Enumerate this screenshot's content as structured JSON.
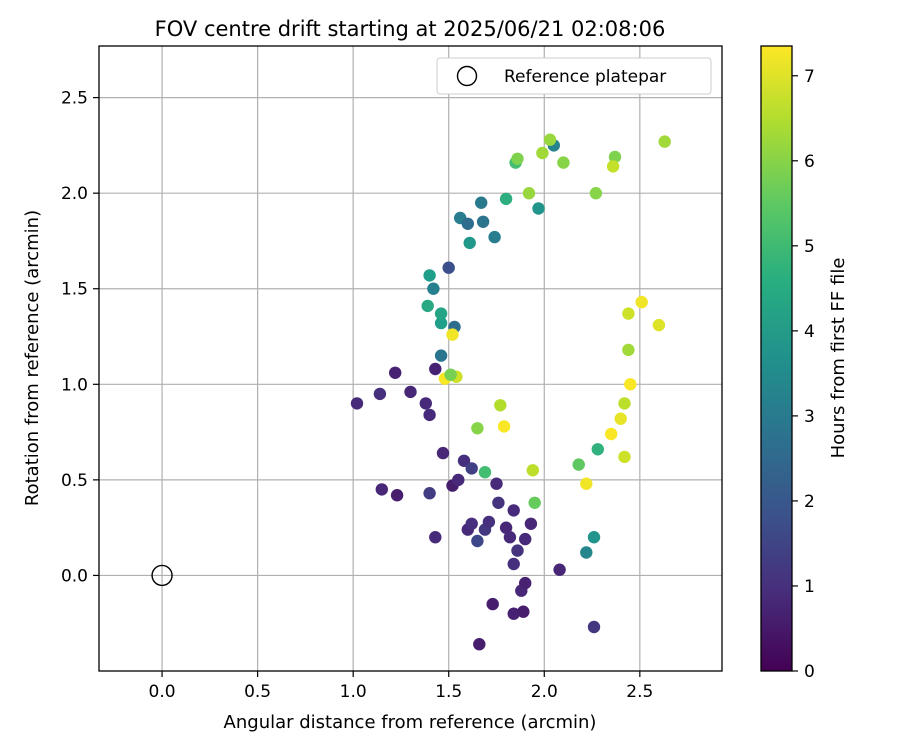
{
  "chart_data": {
    "type": "scatter",
    "title": "FOV centre drift starting at 2025/06/21 02:08:06",
    "xlabel": "Angular distance from reference (arcmin)",
    "ylabel": "Rotation from reference (arcmin)",
    "xlim": [
      -0.33,
      2.93
    ],
    "ylim": [
      -0.5,
      2.77
    ],
    "xticks": [
      "0.0",
      "0.5",
      "1.0",
      "1.5",
      "2.0",
      "2.5"
    ],
    "yticks": [
      "0.0",
      "0.5",
      "1.0",
      "1.5",
      "2.0",
      "2.5"
    ],
    "grid": true,
    "legend": {
      "placement": "top-right",
      "entries": [
        "Reference platepar"
      ]
    },
    "reference_point": {
      "label": "Reference platepar",
      "x": 0.0,
      "y": 0.0
    },
    "colorbar": {
      "label": "Hours from first FF file",
      "range": [
        0,
        7.35
      ],
      "ticks": [
        "0",
        "1",
        "2",
        "3",
        "4",
        "5",
        "6",
        "7"
      ],
      "colormap": "viridis"
    },
    "series": [
      {
        "point_format": [
          "x_arcmin",
          "y_arcmin",
          "hours"
        ],
        "points": [
          [
            1.02,
            0.9,
            0.9
          ],
          [
            1.14,
            0.95,
            1.0
          ],
          [
            1.15,
            0.45,
            0.8
          ],
          [
            1.22,
            1.06,
            0.7
          ],
          [
            1.23,
            0.42,
            0.6
          ],
          [
            1.3,
            0.96,
            0.8
          ],
          [
            1.38,
            0.9,
            0.9
          ],
          [
            1.4,
            0.84,
            0.9
          ],
          [
            1.4,
            0.43,
            1.3
          ],
          [
            1.43,
            0.2,
            0.9
          ],
          [
            1.43,
            1.08,
            0.7
          ],
          [
            1.47,
            0.64,
            0.8
          ],
          [
            1.52,
            0.47,
            0.6
          ],
          [
            1.55,
            0.5,
            0.9
          ],
          [
            1.58,
            0.6,
            1.0
          ],
          [
            1.6,
            0.24,
            0.9
          ],
          [
            1.62,
            0.27,
            1.0
          ],
          [
            1.65,
            0.18,
            1.6
          ],
          [
            1.66,
            -0.36,
            0.6
          ],
          [
            1.69,
            0.24,
            1.2
          ],
          [
            1.71,
            0.28,
            1.0
          ],
          [
            1.73,
            -0.15,
            0.6
          ],
          [
            1.75,
            0.48,
            0.9
          ],
          [
            1.8,
            0.25,
            0.8
          ],
          [
            1.82,
            0.2,
            0.9
          ],
          [
            1.84,
            0.06,
            1.0
          ],
          [
            1.84,
            -0.2,
            0.7
          ],
          [
            1.86,
            0.13,
            1.1
          ],
          [
            1.88,
            -0.08,
            0.8
          ],
          [
            1.89,
            -0.19,
            0.6
          ],
          [
            1.9,
            -0.04,
            0.7
          ],
          [
            1.9,
            0.19,
            0.9
          ],
          [
            1.93,
            0.27,
            0.8
          ],
          [
            2.08,
            0.03,
            0.8
          ],
          [
            2.26,
            -0.27,
            1.2
          ],
          [
            1.84,
            0.34,
            0.9
          ],
          [
            1.76,
            0.38,
            1.1
          ],
          [
            1.62,
            0.56,
            1.4
          ],
          [
            1.69,
            0.54,
            5.1
          ],
          [
            1.95,
            0.38,
            5.6
          ],
          [
            2.22,
            0.12,
            3.4
          ],
          [
            2.26,
            0.2,
            3.8
          ],
          [
            1.39,
            1.41,
            4.4
          ],
          [
            1.4,
            1.57,
            4.1
          ],
          [
            1.42,
            1.5,
            3.2
          ],
          [
            1.46,
            1.15,
            2.9
          ],
          [
            1.46,
            1.32,
            4.1
          ],
          [
            1.46,
            1.37,
            4.3
          ],
          [
            1.5,
            1.61,
            1.8
          ],
          [
            1.53,
            1.3,
            2.6
          ],
          [
            1.56,
            1.87,
            3.1
          ],
          [
            1.6,
            1.84,
            2.6
          ],
          [
            1.61,
            1.74,
            3.9
          ],
          [
            1.67,
            1.95,
            3.0
          ],
          [
            1.68,
            1.85,
            2.8
          ],
          [
            1.74,
            1.77,
            3.1
          ],
          [
            1.8,
            1.97,
            4.6
          ],
          [
            1.85,
            2.16,
            5.1
          ],
          [
            1.86,
            2.18,
            5.9
          ],
          [
            1.97,
            1.92,
            3.8
          ],
          [
            2.05,
            2.25,
            3.3
          ],
          [
            2.03,
            2.28,
            6.2
          ],
          [
            1.99,
            2.21,
            6.3
          ],
          [
            2.1,
            2.16,
            6.0
          ],
          [
            1.92,
            2.0,
            6.2
          ],
          [
            2.37,
            2.19,
            5.9
          ],
          [
            2.36,
            2.14,
            6.7
          ],
          [
            2.27,
            2.0,
            6.0
          ],
          [
            2.63,
            2.27,
            6.3
          ],
          [
            2.6,
            1.31,
            7.0
          ],
          [
            2.51,
            1.43,
            7.2
          ],
          [
            2.44,
            1.37,
            6.8
          ],
          [
            2.44,
            1.18,
            6.3
          ],
          [
            2.42,
            0.9,
            6.6
          ],
          [
            2.42,
            0.62,
            6.8
          ],
          [
            2.45,
            1.0,
            7.3
          ],
          [
            2.4,
            0.82,
            7.1
          ],
          [
            2.35,
            0.74,
            7.3
          ],
          [
            2.28,
            0.66,
            4.7
          ],
          [
            2.22,
            0.48,
            7.2
          ],
          [
            2.18,
            0.58,
            5.5
          ],
          [
            1.94,
            0.55,
            6.6
          ],
          [
            1.79,
            0.78,
            7.3
          ],
          [
            1.77,
            0.89,
            6.5
          ],
          [
            1.65,
            0.77,
            6.0
          ],
          [
            1.54,
            1.04,
            6.8
          ],
          [
            1.48,
            1.03,
            7.3
          ],
          [
            1.52,
            1.26,
            7.2
          ],
          [
            1.51,
            1.05,
            5.8
          ]
        ]
      }
    ]
  }
}
